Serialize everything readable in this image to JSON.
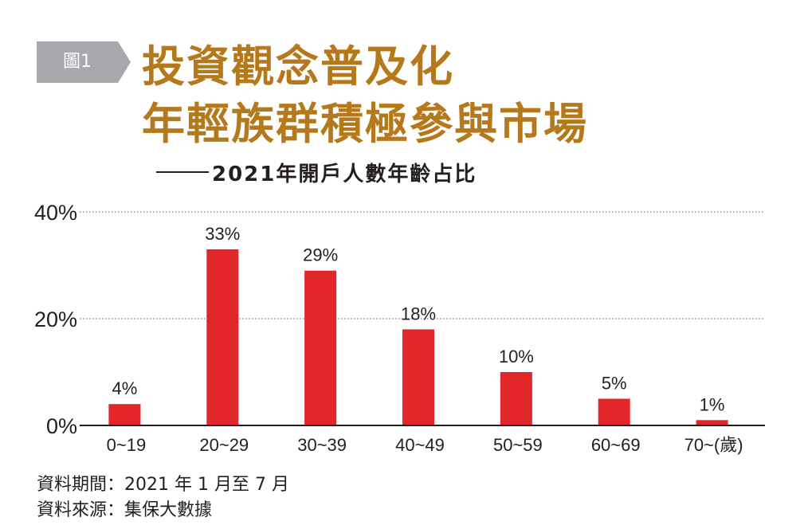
{
  "figure": {
    "tag": "圖1",
    "title_line1": "投資觀念普及化",
    "title_line2": "年輕族群積極參與市場",
    "subtitle": "2021年開戶人數年齡占比"
  },
  "notes": {
    "period": "資料期間：2021 年 1 月至 7 月",
    "source": "資料來源：集保大數據"
  },
  "colors": {
    "tag_gray": "#a7a9ac",
    "title_gold": "#b5781a",
    "bar_red": "#e3262b",
    "text": "#231f20"
  },
  "chart_data": {
    "type": "bar",
    "categories": [
      "0~19",
      "20~29",
      "30~39",
      "40~49",
      "50~59",
      "60~69",
      "70~(歲)"
    ],
    "values": [
      4,
      33,
      29,
      18,
      10,
      5,
      1
    ],
    "value_labels": [
      "4%",
      "33%",
      "29%",
      "18%",
      "10%",
      "5%",
      "1%"
    ],
    "y_ticks": [
      0,
      20,
      40
    ],
    "y_tick_labels": [
      "0%",
      "20%",
      "40%"
    ],
    "ylim": [
      0,
      40
    ],
    "grid": "dotted horizontal",
    "xlabel": "",
    "ylabel": ""
  }
}
